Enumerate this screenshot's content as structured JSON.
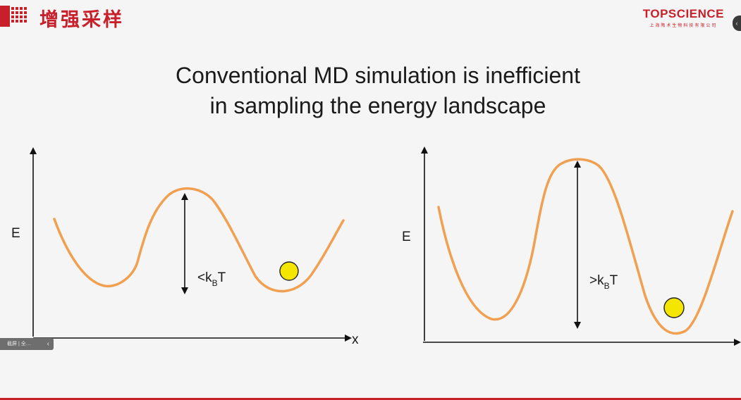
{
  "header": {
    "title": "增强采样",
    "brand_name": "TOPSCIENCE",
    "brand_subtitle": "上海陶术生物科技有限公司",
    "logo_icon": "red-grid-logo-icon"
  },
  "slide": {
    "title_line1": "Conventional MD simulation is inefficient",
    "title_line2": "in sampling the energy landscape"
  },
  "left_diagram": {
    "y_axis_label": "E",
    "x_axis_label": "x",
    "barrier_label_prefix": "<k",
    "barrier_label_sub": "B",
    "barrier_label_suffix": "T",
    "curve_color": "#f0a050",
    "ball_color": "#f4e600"
  },
  "right_diagram": {
    "y_axis_label": "E",
    "barrier_label_prefix": ">k",
    "barrier_label_sub": "B",
    "barrier_label_suffix": "T",
    "curve_color": "#f0a050",
    "ball_color": "#f4e600"
  },
  "player": {
    "bar_text": "截屏 | 全…",
    "collapse_glyph": "‹",
    "side_glyph": "‹"
  },
  "colors": {
    "accent_red": "#c8202a",
    "background": "#f5f5f5"
  }
}
